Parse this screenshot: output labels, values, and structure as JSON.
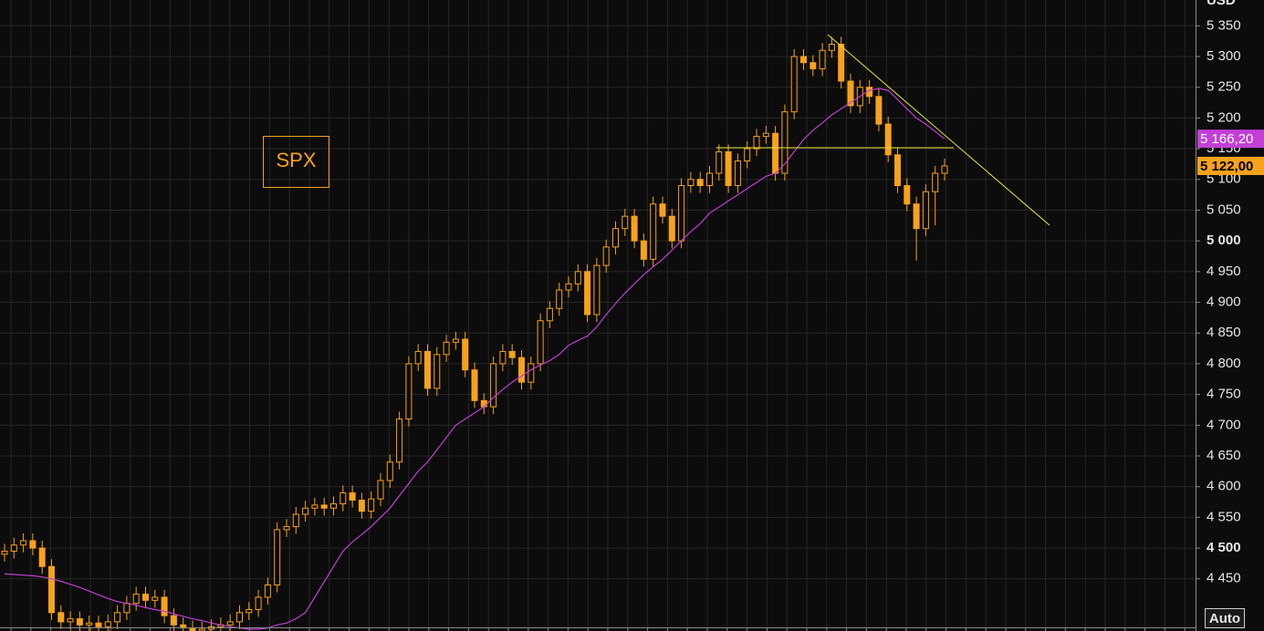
{
  "chart_data": {
    "type": "candlestick",
    "title": "SPX",
    "y_unit": "USD",
    "button": "Auto",
    "color": "#f7a21b",
    "open": [
      4490,
      4495,
      4505,
      4512,
      4500,
      4470,
      4395,
      4380,
      4385,
      4375,
      4378,
      4372,
      4380,
      4395,
      4410,
      4425,
      4415,
      4420,
      4390,
      4375,
      4370,
      4365,
      4368,
      4372,
      4375,
      4380,
      4395,
      4400,
      4420,
      4440,
      4530,
      4535,
      4555,
      4565,
      4570,
      4565,
      4572,
      4590,
      4578,
      4560,
      4580,
      4610,
      4640,
      4710,
      4800,
      4820,
      4760,
      4815,
      4835,
      4840,
      4790,
      4740,
      4730,
      4800,
      4820,
      4810,
      4770,
      4800,
      4870,
      4890,
      4920,
      4930,
      4950,
      4880,
      4960,
      4990,
      5020,
      5040,
      5000,
      4970,
      5060,
      5040,
      5000,
      5090,
      5100,
      5090,
      5110,
      5145,
      5090,
      5130,
      5150,
      5170,
      5175,
      5110,
      5210,
      5300,
      5290,
      5280,
      5310,
      5320,
      5260,
      5220,
      5250,
      5235,
      5190,
      5140,
      5090,
      5060,
      5020,
      5080,
      5110
    ],
    "high": [
      4507,
      4517,
      4524,
      4524,
      4512,
      4482,
      4407,
      4397,
      4397,
      4390,
      4390,
      4392,
      4407,
      4422,
      4437,
      4437,
      4432,
      4432,
      4402,
      4387,
      4382,
      4380,
      4384,
      4387,
      4392,
      4407,
      4412,
      4432,
      4452,
      4542,
      4547,
      4567,
      4577,
      4582,
      4582,
      4584,
      4602,
      4602,
      4590,
      4592,
      4622,
      4652,
      4722,
      4812,
      4832,
      4832,
      4827,
      4847,
      4852,
      4852,
      4802,
      4752,
      4812,
      4832,
      4832,
      4822,
      4812,
      4882,
      4902,
      4932,
      4942,
      4962,
      4962,
      4972,
      5002,
      5032,
      5052,
      5052,
      5012,
      5072,
      5072,
      5052,
      5102,
      5112,
      5112,
      5122,
      5157,
      5157,
      5142,
      5162,
      5182,
      5187,
      5187,
      5222,
      5312,
      5312,
      5302,
      5322,
      5332,
      5332,
      5272,
      5262,
      5262,
      5247,
      5202,
      5152,
      5102,
      5072,
      5092,
      5122,
      5134
    ],
    "low": [
      4478,
      4483,
      4493,
      4488,
      4458,
      4383,
      4368,
      4368,
      4363,
      4363,
      4360,
      4360,
      4368,
      4383,
      4398,
      4403,
      4403,
      4378,
      4363,
      4358,
      4353,
      4353,
      4356,
      4360,
      4363,
      4368,
      4383,
      4388,
      4408,
      4428,
      4518,
      4523,
      4543,
      4553,
      4553,
      4553,
      4560,
      4566,
      4548,
      4548,
      4568,
      4598,
      4628,
      4698,
      4788,
      4748,
      4748,
      4803,
      4823,
      4778,
      4728,
      4718,
      4718,
      4788,
      4798,
      4758,
      4758,
      4788,
      4858,
      4878,
      4908,
      4918,
      4868,
      4868,
      4948,
      4978,
      5008,
      4988,
      4958,
      4958,
      5028,
      4988,
      4988,
      5078,
      5078,
      5078,
      5098,
      5078,
      5078,
      5118,
      5138,
      5158,
      5098,
      5098,
      5198,
      5278,
      5268,
      5268,
      5298,
      5248,
      5208,
      5208,
      5223,
      5178,
      5128,
      5078,
      5048,
      4968,
      5008,
      5025,
      5098
    ],
    "close": [
      4495,
      4505,
      4512,
      4500,
      4470,
      4395,
      4380,
      4385,
      4375,
      4378,
      4372,
      4380,
      4395,
      4410,
      4425,
      4415,
      4420,
      4390,
      4375,
      4370,
      4365,
      4368,
      4372,
      4375,
      4380,
      4395,
      4400,
      4420,
      4440,
      4530,
      4535,
      4555,
      4565,
      4570,
      4565,
      4572,
      4590,
      4578,
      4560,
      4580,
      4610,
      4640,
      4710,
      4800,
      4820,
      4760,
      4815,
      4835,
      4840,
      4790,
      4740,
      4730,
      4800,
      4820,
      4810,
      4770,
      4800,
      4870,
      4890,
      4920,
      4930,
      4950,
      4880,
      4960,
      4990,
      5020,
      5040,
      5000,
      4970,
      5060,
      5040,
      5000,
      5090,
      5100,
      5090,
      5110,
      5145,
      5090,
      5130,
      5150,
      5170,
      5175,
      5110,
      5210,
      5300,
      5290,
      5280,
      5310,
      5320,
      5260,
      5220,
      5250,
      5235,
      5190,
      5140,
      5090,
      5060,
      5020,
      5080,
      5110,
      5122
    ],
    "close_label": "5 122,00",
    "overlay": {
      "color": "#c23fd6",
      "value_label": "5 166,20",
      "values": [
        4458,
        4457,
        4456,
        4455,
        4453,
        4450,
        4446,
        4441,
        4436,
        4430,
        4424,
        4418,
        4413,
        4410,
        4407,
        4403,
        4400,
        4397,
        4393,
        4389,
        4385,
        4382,
        4378,
        4375,
        4372,
        4370,
        4368,
        4368,
        4370,
        4375,
        4378,
        4385,
        4395,
        4420,
        4445,
        4470,
        4495,
        4510,
        4522,
        4535,
        4550,
        4565,
        4585,
        4605,
        4625,
        4640,
        4660,
        4680,
        4700,
        4710,
        4720,
        4730,
        4745,
        4758,
        4770,
        4780,
        4790,
        4798,
        4805,
        4815,
        4830,
        4838,
        4845,
        4860,
        4880,
        4898,
        4915,
        4930,
        4945,
        4958,
        4970,
        4985,
        5000,
        5015,
        5028,
        5045,
        5055,
        5065,
        5075,
        5085,
        5095,
        5105,
        5110,
        5125,
        5145,
        5165,
        5180,
        5192,
        5205,
        5215,
        5225,
        5235,
        5245,
        5248,
        5245,
        5230,
        5215,
        5200,
        5190,
        5178,
        5166.2
      ]
    },
    "ylim": [
      4371,
      5392
    ],
    "yticks": [
      {
        "value": 4450,
        "label": "4 450"
      },
      {
        "value": 4500,
        "label": "4 500"
      },
      {
        "value": 4550,
        "label": "4 550"
      },
      {
        "value": 4600,
        "label": "4 600"
      },
      {
        "value": 4650,
        "label": "4 650"
      },
      {
        "value": 4700,
        "label": "4 700"
      },
      {
        "value": 4750,
        "label": "4 750"
      },
      {
        "value": 4800,
        "label": "4 800"
      },
      {
        "value": 4850,
        "label": "4 850"
      },
      {
        "value": 4900,
        "label": "4 900"
      },
      {
        "value": 4950,
        "label": "4 950"
      },
      {
        "value": 5000,
        "label": "5 000"
      },
      {
        "value": 5050,
        "label": "5 050"
      },
      {
        "value": 5100,
        "label": "5 100"
      },
      {
        "value": 5150,
        "label": "5 150"
      },
      {
        "value": 5200,
        "label": "5 200"
      },
      {
        "value": 5250,
        "label": "5 250"
      },
      {
        "value": 5300,
        "label": "5 300"
      },
      {
        "value": 5350,
        "label": "5 350"
      }
    ],
    "grid": true
  }
}
